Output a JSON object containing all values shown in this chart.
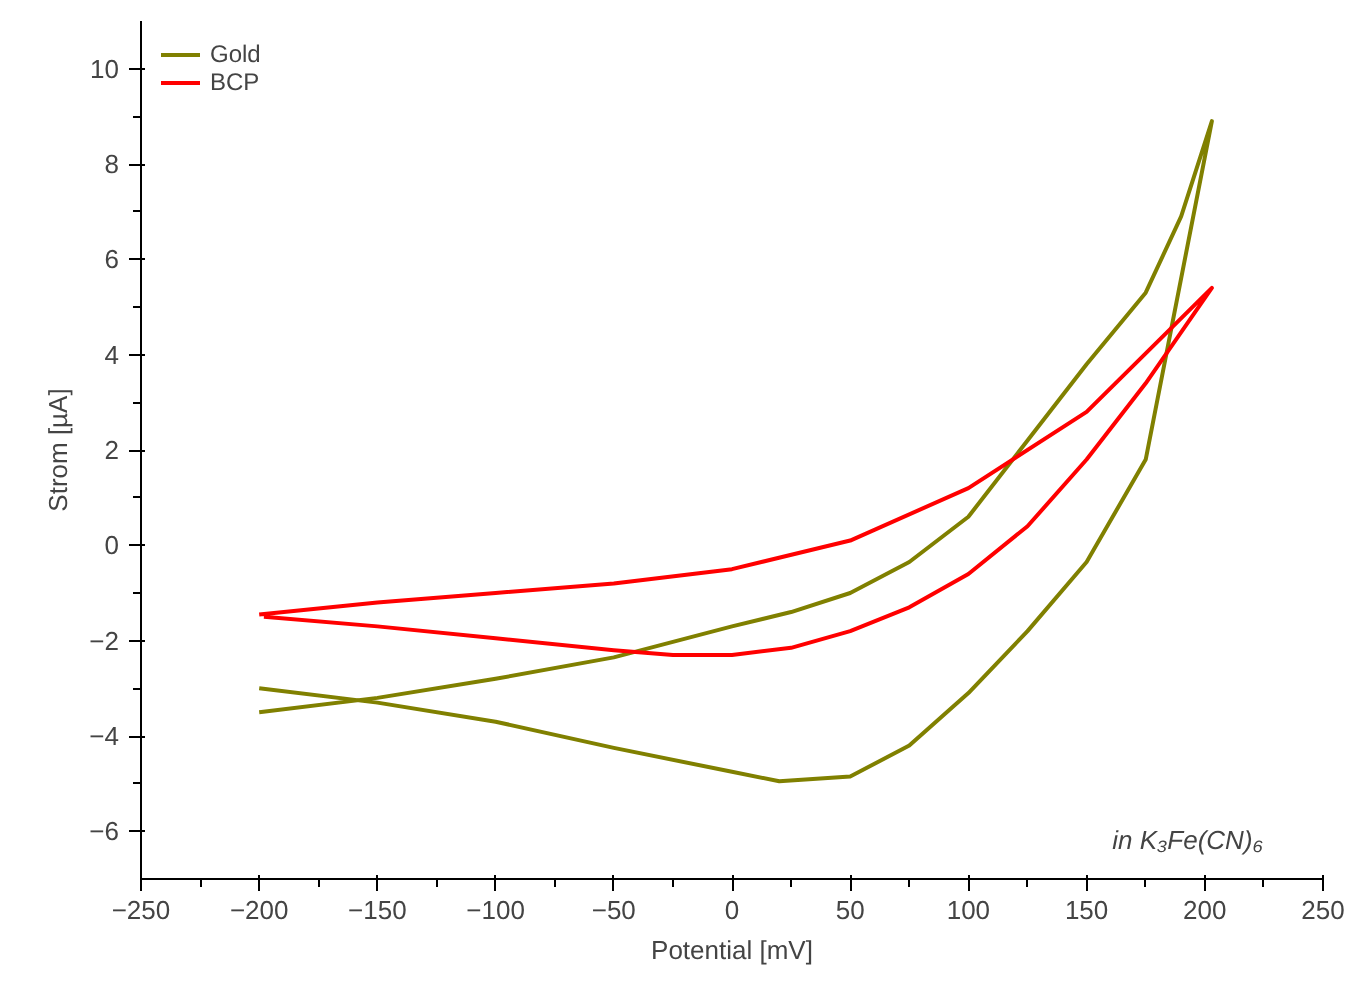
{
  "chart_data": {
    "type": "line",
    "xlabel": "Potential [mV]",
    "ylabel": "Strom [µA]",
    "xlim": [
      -250,
      250
    ],
    "ylim": [
      -7,
      11
    ],
    "xticks": [
      -250,
      -200,
      -150,
      -100,
      -50,
      0,
      50,
      100,
      150,
      200,
      250
    ],
    "yticks": [
      -6,
      -4,
      -2,
      0,
      2,
      4,
      6,
      8,
      10
    ],
    "grid": false,
    "legend": "top left",
    "line_style": "solid",
    "marker": "none",
    "annotations": [
      "in K₃Fe(CN)₆"
    ],
    "series": [
      {
        "name": "Gold",
        "color": "#808000",
        "x": [
          -200,
          -150,
          -100,
          -50,
          0,
          20,
          50,
          75,
          100,
          125,
          150,
          175,
          203,
          190,
          175,
          150,
          125,
          100,
          75,
          50,
          25,
          0,
          -50,
          -100,
          -150,
          -200
        ],
        "values": [
          -3.0,
          -3.3,
          -3.7,
          -4.25,
          -4.75,
          -4.95,
          -4.85,
          -4.2,
          -3.1,
          -1.8,
          -0.35,
          1.8,
          8.9,
          6.9,
          5.3,
          3.8,
          2.2,
          0.6,
          -0.35,
          -1.0,
          -1.4,
          -1.7,
          -2.35,
          -2.8,
          -3.2,
          -3.5
        ]
      },
      {
        "name": "BCP",
        "color": "#ff0000",
        "x": [
          -200,
          -150,
          -100,
          -50,
          0,
          50,
          100,
          150,
          203,
          175,
          150,
          125,
          100,
          75,
          50,
          25,
          0,
          -25,
          -50,
          -100,
          -150,
          -198
        ],
        "values": [
          -1.45,
          -1.2,
          -1.0,
          -0.8,
          -0.5,
          0.1,
          1.2,
          2.8,
          5.4,
          3.4,
          1.8,
          0.4,
          -0.6,
          -1.3,
          -1.8,
          -2.15,
          -2.3,
          -2.3,
          -2.2,
          -1.95,
          -1.7,
          -1.5
        ]
      }
    ]
  }
}
